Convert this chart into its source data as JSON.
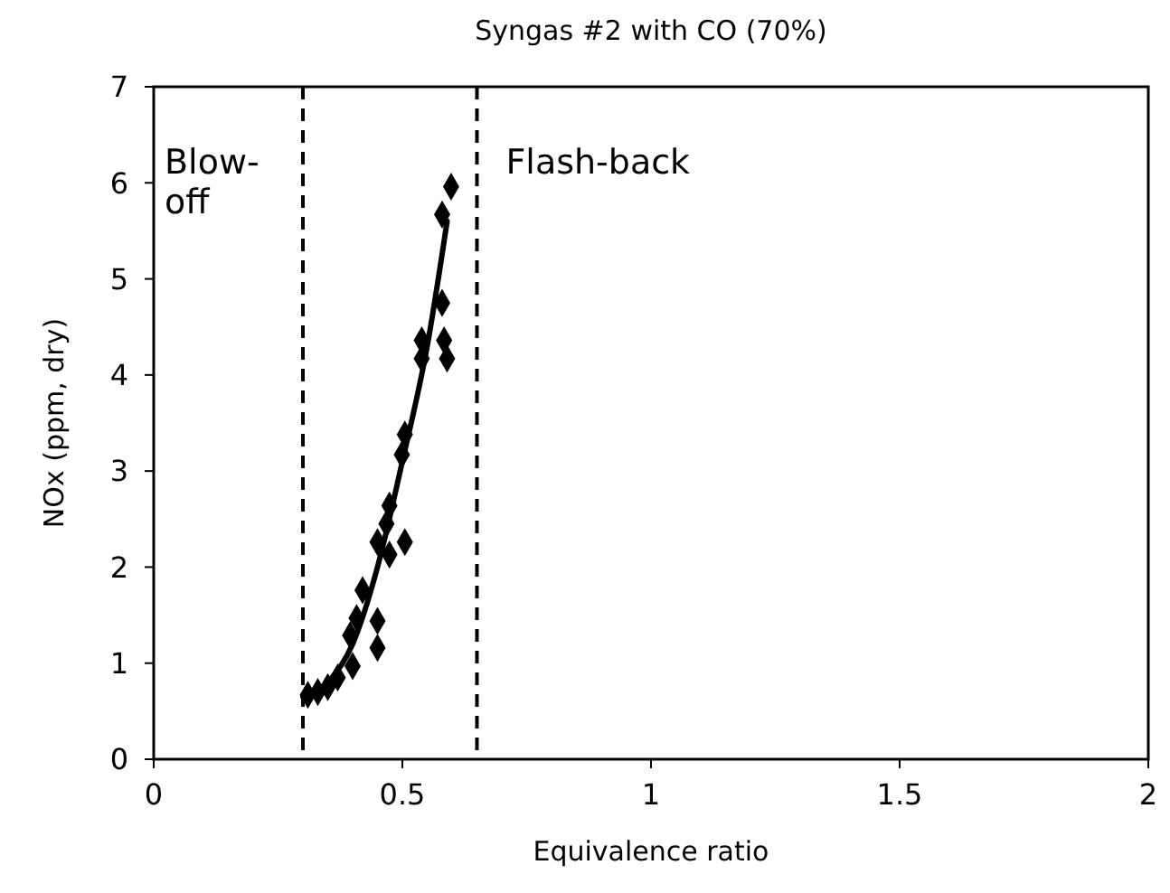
{
  "chart_data": {
    "type": "scatter",
    "title": "Syngas #2 with CO (70%)",
    "xlabel": "Equivalence ratio",
    "ylabel": "NOx (ppm, dry)",
    "xlim": [
      0,
      2
    ],
    "xticks": [
      0,
      0.5,
      1,
      1.5,
      2
    ],
    "ylim": [
      0,
      7
    ],
    "yticks": [
      0,
      1,
      2,
      3,
      4,
      5,
      6,
      7
    ],
    "grid": false,
    "series": [
      {
        "color": "#000000",
        "marker": "diamond",
        "x": [
          0.598,
          0.58,
          0.58,
          0.539,
          0.584,
          0.539,
          0.59,
          0.505,
          0.499,
          0.474,
          0.468,
          0.45,
          0.505,
          0.474,
          0.42,
          0.408,
          0.45,
          0.395,
          0.45,
          0.4,
          0.37,
          0.35,
          0.33,
          0.31
        ],
        "values": [
          5.96,
          5.67,
          4.75,
          4.36,
          4.36,
          4.17,
          4.17,
          3.38,
          3.17,
          2.64,
          2.45,
          2.26,
          2.26,
          2.13,
          1.76,
          1.47,
          1.44,
          1.29,
          1.16,
          0.97,
          0.85,
          0.75,
          0.7,
          0.67
        ]
      },
      {
        "type": "line",
        "color": "#000000",
        "marker": "none",
        "line_style": "solid",
        "x": [
          0.3,
          0.35,
          0.4,
          0.45,
          0.5,
          0.55,
          0.59
        ],
        "values": [
          0.65,
          0.8,
          1.2,
          2.0,
          3.1,
          4.3,
          5.6
        ]
      }
    ],
    "ref_lines": [
      {
        "axis": "x",
        "value": 0.3,
        "line_style": "dashed",
        "color": "#000000"
      },
      {
        "axis": "x",
        "value": 0.65,
        "line_style": "dashed",
        "color": "#000000"
      }
    ],
    "annotations": [
      "Blow-off",
      "Flash-back"
    ]
  }
}
